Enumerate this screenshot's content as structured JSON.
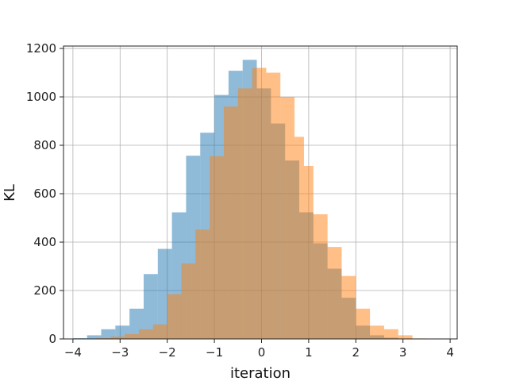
{
  "chart_data": {
    "type": "bar",
    "subtype": "overlapping-histogram",
    "title": "",
    "xlabel": "iteration",
    "ylabel": "KL",
    "xlim": [
      -4.2,
      4.15
    ],
    "ylim": [
      0,
      1210
    ],
    "xticks": [
      -4,
      -3,
      -2,
      -1,
      0,
      1,
      2,
      3,
      4
    ],
    "yticks": [
      0,
      200,
      400,
      600,
      800,
      1000,
      1200
    ],
    "grid": true,
    "series": [
      {
        "color": "#1f77b4",
        "alpha": 0.5,
        "bin_edges": [
          -4.0,
          -3.7,
          -3.4,
          -3.1,
          -2.8,
          -2.5,
          -2.2,
          -1.9,
          -1.6,
          -1.3,
          -1.0,
          -0.7,
          -0.4,
          -0.1,
          0.2,
          0.5,
          0.8,
          1.1,
          1.4,
          1.7,
          2.0,
          2.3,
          2.6,
          2.9,
          3.2,
          3.5,
          3.8
        ],
        "values": [
          3,
          15,
          40,
          55,
          125,
          268,
          372,
          523,
          757,
          852,
          1008,
          1108,
          1153,
          1035,
          890,
          737,
          523,
          395,
          290,
          170,
          55,
          15,
          5,
          2,
          1,
          0
        ]
      },
      {
        "color": "#ff7f0e",
        "alpha": 0.5,
        "bin_edges": [
          -3.5,
          -3.2,
          -2.9,
          -2.6,
          -2.3,
          -2.0,
          -1.7,
          -1.4,
          -1.1,
          -0.8,
          -0.5,
          -0.2,
          0.1,
          0.4,
          0.7,
          0.9,
          1.1,
          1.4,
          1.7,
          2.0,
          2.3,
          2.6,
          2.9,
          3.2,
          3.5,
          3.8
        ],
        "values": [
          3,
          10,
          20,
          40,
          60,
          185,
          312,
          452,
          755,
          960,
          1035,
          1120,
          1100,
          1000,
          835,
          715,
          515,
          380,
          260,
          125,
          55,
          40,
          15,
          2,
          1
        ]
      }
    ]
  }
}
